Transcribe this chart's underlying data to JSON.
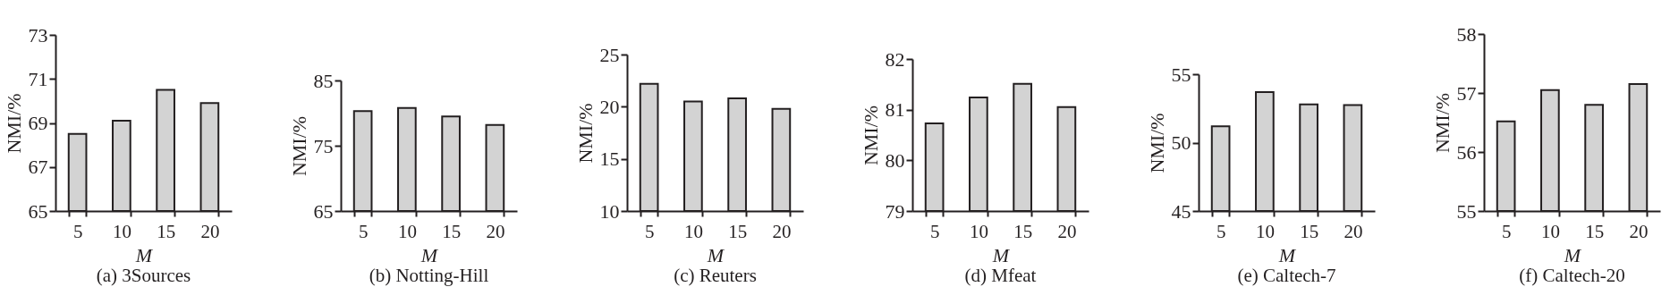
{
  "chart_data": [
    {
      "type": "bar",
      "title": "(a) 3Sources",
      "xlabel": "M",
      "ylabel": "NMI/%",
      "categories": [
        "5",
        "10",
        "15",
        "20"
      ],
      "values": [
        68.5,
        69.1,
        70.5,
        69.9
      ],
      "color": "#d3d3d3",
      "ylim": [
        65,
        73
      ],
      "yticks": [
        65,
        67,
        69,
        71,
        73
      ]
    },
    {
      "type": "bar",
      "title": "(b) Notting-Hill",
      "xlabel": "M",
      "ylabel": "NMI/%",
      "categories": [
        "5",
        "10",
        "15",
        "20"
      ],
      "values": [
        80.3,
        80.8,
        79.5,
        78.2
      ],
      "color": "#d3d3d3",
      "ylim": [
        65,
        85
      ],
      "yticks": [
        65,
        75,
        85
      ]
    },
    {
      "type": "bar",
      "title": "(c) Reuters",
      "xlabel": "M",
      "ylabel": "NMI/%",
      "categories": [
        "5",
        "10",
        "15",
        "20"
      ],
      "values": [
        22.2,
        20.5,
        20.8,
        19.8
      ],
      "color": "#d3d3d3",
      "ylim": [
        10,
        25
      ],
      "yticks": [
        10,
        15,
        20,
        25
      ]
    },
    {
      "type": "bar",
      "title": "(d) Mfeat",
      "xlabel": "M",
      "ylabel": "NMI/%",
      "categories": [
        "5",
        "10",
        "15",
        "20"
      ],
      "values": [
        80.73,
        81.24,
        81.51,
        81.05
      ],
      "color": "#d3d3d3",
      "ylim": [
        79,
        82
      ],
      "yticks": [
        79,
        80,
        81,
        82
      ]
    },
    {
      "type": "bar",
      "title": "(e) Caltech-7",
      "xlabel": "M",
      "ylabel": "NMI/%",
      "categories": [
        "5",
        "10",
        "15",
        "20"
      ],
      "values": [
        51.2,
        53.7,
        52.8,
        52.75
      ],
      "color": "#d3d3d3",
      "ylim": [
        45,
        55
      ],
      "yticks": [
        45,
        50,
        55
      ]
    },
    {
      "type": "bar",
      "title": "(f) Caltech-20",
      "xlabel": "M",
      "ylabel": "NMI/%",
      "categories": [
        "5",
        "10",
        "15",
        "20"
      ],
      "values": [
        56.52,
        57.05,
        56.8,
        57.15
      ],
      "color": "#d3d3d3",
      "ylim": [
        55,
        58
      ],
      "yticks": [
        55,
        56,
        57,
        58
      ]
    }
  ]
}
